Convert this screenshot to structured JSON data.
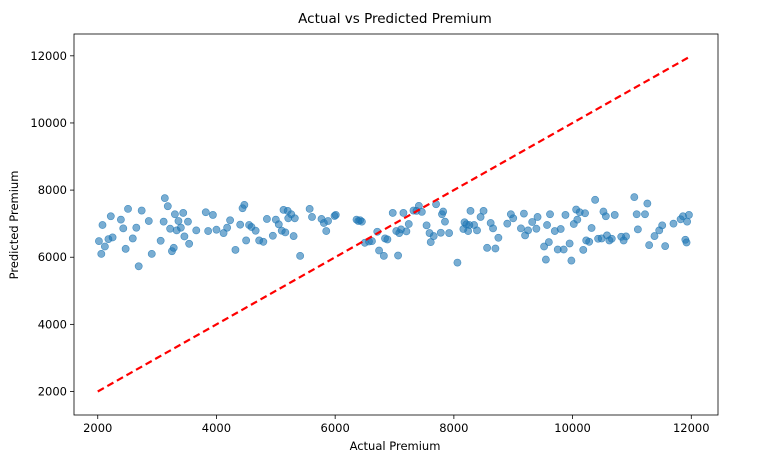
{
  "chart_data": {
    "type": "scatter",
    "title": "Actual vs Predicted Premium",
    "xlabel": "Actual Premium",
    "ylabel": "Predicted Premium",
    "xlim": [
      1600,
      12450
    ],
    "ylim": [
      1300,
      12650
    ],
    "xticks": [
      2000,
      4000,
      6000,
      8000,
      10000,
      12000
    ],
    "yticks": [
      2000,
      4000,
      6000,
      8000,
      10000,
      12000
    ],
    "grid": false,
    "legend": "none",
    "colors": {
      "points": "#1f77b4",
      "reference_line": "#ff0000",
      "axes": "#000000"
    },
    "reference_line": {
      "style": "dashed",
      "from": [
        2000,
        2000
      ],
      "to": [
        12000,
        12000
      ]
    },
    "series": [
      {
        "points": [
          [
            2020,
            6480
          ],
          [
            2060,
            6100
          ],
          [
            2080,
            6960
          ],
          [
            2120,
            6320
          ],
          [
            2180,
            6540
          ],
          [
            2220,
            7220
          ],
          [
            2250,
            6590
          ],
          [
            2390,
            7120
          ],
          [
            2430,
            6860
          ],
          [
            2470,
            6250
          ],
          [
            2510,
            7440
          ],
          [
            2590,
            6560
          ],
          [
            2650,
            6880
          ],
          [
            2690,
            5730
          ],
          [
            2740,
            7390
          ],
          [
            2860,
            7080
          ],
          [
            2910,
            6100
          ],
          [
            3060,
            6490
          ],
          [
            3110,
            7060
          ],
          [
            3130,
            7760
          ],
          [
            3180,
            7520
          ],
          [
            3220,
            6850
          ],
          [
            3250,
            6180
          ],
          [
            3280,
            6280
          ],
          [
            3300,
            7280
          ],
          [
            3330,
            6800
          ],
          [
            3360,
            7080
          ],
          [
            3400,
            6880
          ],
          [
            3440,
            7320
          ],
          [
            3460,
            6620
          ],
          [
            3520,
            7060
          ],
          [
            3540,
            6400
          ],
          [
            3660,
            6800
          ],
          [
            3820,
            7340
          ],
          [
            3860,
            6780
          ],
          [
            3940,
            7260
          ],
          [
            4000,
            6820
          ],
          [
            4120,
            6720
          ],
          [
            4180,
            6880
          ],
          [
            4230,
            7100
          ],
          [
            4320,
            6220
          ],
          [
            4400,
            6970
          ],
          [
            4440,
            7460
          ],
          [
            4470,
            7560
          ],
          [
            4500,
            6500
          ],
          [
            4550,
            6960
          ],
          [
            4590,
            6900
          ],
          [
            4660,
            6790
          ],
          [
            4720,
            6500
          ],
          [
            4790,
            6460
          ],
          [
            4850,
            7140
          ],
          [
            4950,
            6640
          ],
          [
            5000,
            7120
          ],
          [
            5050,
            6980
          ],
          [
            5100,
            6790
          ],
          [
            5130,
            7410
          ],
          [
            5160,
            6740
          ],
          [
            5200,
            7380
          ],
          [
            5210,
            7160
          ],
          [
            5260,
            7280
          ],
          [
            5300,
            6630
          ],
          [
            5320,
            7160
          ],
          [
            5410,
            6040
          ],
          [
            5570,
            7440
          ],
          [
            5610,
            7200
          ],
          [
            5770,
            7140
          ],
          [
            5810,
            7020
          ],
          [
            5850,
            6780
          ],
          [
            5880,
            7080
          ],
          [
            5990,
            7230
          ],
          [
            6010,
            7260
          ],
          [
            6360,
            7120
          ],
          [
            6390,
            7080
          ],
          [
            6420,
            7100
          ],
          [
            6450,
            7060
          ],
          [
            6500,
            6430
          ],
          [
            6570,
            6470
          ],
          [
            6620,
            6480
          ],
          [
            6710,
            6760
          ],
          [
            6740,
            6200
          ],
          [
            6820,
            6040
          ],
          [
            6840,
            6560
          ],
          [
            6880,
            6530
          ],
          [
            6970,
            7320
          ],
          [
            7030,
            6780
          ],
          [
            7060,
            6050
          ],
          [
            7080,
            6720
          ],
          [
            7110,
            6830
          ],
          [
            7150,
            7320
          ],
          [
            7200,
            6770
          ],
          [
            7240,
            6990
          ],
          [
            7320,
            7390
          ],
          [
            7370,
            7380
          ],
          [
            7410,
            7530
          ],
          [
            7460,
            7350
          ],
          [
            7540,
            6950
          ],
          [
            7590,
            6720
          ],
          [
            7610,
            6450
          ],
          [
            7660,
            6630
          ],
          [
            7700,
            7580
          ],
          [
            7780,
            6730
          ],
          [
            7800,
            7280
          ],
          [
            7820,
            7360
          ],
          [
            7850,
            7060
          ],
          [
            7920,
            6720
          ],
          [
            8060,
            5840
          ],
          [
            8160,
            6840
          ],
          [
            8180,
            7040
          ],
          [
            8210,
            6980
          ],
          [
            8240,
            6780
          ],
          [
            8260,
            6960
          ],
          [
            8280,
            7380
          ],
          [
            8340,
            6960
          ],
          [
            8390,
            6800
          ],
          [
            8450,
            7200
          ],
          [
            8500,
            7380
          ],
          [
            8560,
            6280
          ],
          [
            8620,
            7020
          ],
          [
            8660,
            6860
          ],
          [
            8700,
            6260
          ],
          [
            8750,
            6580
          ],
          [
            8900,
            7000
          ],
          [
            8960,
            7280
          ],
          [
            9000,
            7160
          ],
          [
            9130,
            6860
          ],
          [
            9180,
            7300
          ],
          [
            9200,
            6650
          ],
          [
            9250,
            6800
          ],
          [
            9320,
            7050
          ],
          [
            9390,
            6850
          ],
          [
            9410,
            7200
          ],
          [
            9520,
            6320
          ],
          [
            9550,
            5930
          ],
          [
            9570,
            6960
          ],
          [
            9600,
            6450
          ],
          [
            9620,
            7280
          ],
          [
            9700,
            6780
          ],
          [
            9750,
            6230
          ],
          [
            9800,
            6840
          ],
          [
            9850,
            6230
          ],
          [
            9880,
            7260
          ],
          [
            9950,
            6410
          ],
          [
            9980,
            5900
          ],
          [
            10020,
            6990
          ],
          [
            10060,
            7420
          ],
          [
            10080,
            7120
          ],
          [
            10120,
            7340
          ],
          [
            10180,
            6220
          ],
          [
            10210,
            7310
          ],
          [
            10230,
            6500
          ],
          [
            10280,
            6460
          ],
          [
            10320,
            6870
          ],
          [
            10380,
            7710
          ],
          [
            10430,
            6550
          ],
          [
            10490,
            6560
          ],
          [
            10520,
            7360
          ],
          [
            10560,
            7220
          ],
          [
            10580,
            6650
          ],
          [
            10620,
            6500
          ],
          [
            10660,
            6550
          ],
          [
            10710,
            7260
          ],
          [
            10820,
            6610
          ],
          [
            10860,
            6500
          ],
          [
            10900,
            6620
          ],
          [
            11040,
            7790
          ],
          [
            11080,
            7280
          ],
          [
            11100,
            6830
          ],
          [
            11220,
            7280
          ],
          [
            11260,
            7600
          ],
          [
            11290,
            6360
          ],
          [
            11380,
            6630
          ],
          [
            11460,
            6800
          ],
          [
            11510,
            6950
          ],
          [
            11560,
            6330
          ],
          [
            11700,
            7000
          ],
          [
            11820,
            7130
          ],
          [
            11860,
            7220
          ],
          [
            11900,
            6520
          ],
          [
            11920,
            6440
          ],
          [
            11930,
            7060
          ],
          [
            11960,
            7260
          ]
        ]
      }
    ]
  }
}
